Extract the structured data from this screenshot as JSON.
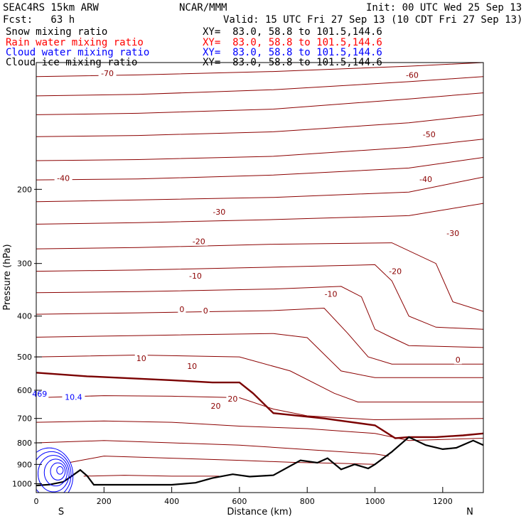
{
  "header": {
    "model": "SEAC4RS 15km ARW",
    "center": "NCAR/MMM",
    "init": "Init: 00 UTC Wed 25 Sep 13",
    "fcst": "Fcst:   63 h",
    "valid": "Valid: 15 UTC Fri 27 Sep 13 (10 CDT Fri 27 Sep 13)"
  },
  "legend": [
    {
      "label": "Snow mixing ratio",
      "xy": "XY=  83.0, 58.8 to 101.5,144.6",
      "color": "#000000"
    },
    {
      "label": "Rain water mixing ratio",
      "xy": "XY=  83.0, 58.8 to 101.5,144.6",
      "color": "#ff0000"
    },
    {
      "label": "Cloud water mixing ratio",
      "xy": "XY=  83.0, 58.8 to 101.5,144.6",
      "color": "#0000ff"
    },
    {
      "label": "Cloud ice mixing ratio",
      "xy": "XY=  83.0, 58.8 to 101.5,144.6",
      "color": "#000000"
    }
  ],
  "colors": {
    "temperature_contour": "#8b0000",
    "zero_isotherm": "#7a0000",
    "terrain": "#000000",
    "cloud_water": "#0000ff"
  },
  "chart_data": {
    "type": "line",
    "xlabel": "Distance (km)",
    "ylabel": "Pressure (hPa)",
    "xlim": [
      0,
      1320
    ],
    "ylim": [
      1050,
      100
    ],
    "y_scale": "log",
    "x_ticks": [
      0,
      200,
      400,
      600,
      800,
      1000,
      1200
    ],
    "y_ticks": [
      200,
      300,
      400,
      500,
      600,
      700,
      800,
      900,
      1000
    ],
    "end_labels": {
      "left": "S",
      "right": "N"
    },
    "grid": false,
    "contour_labels": [
      {
        "text": "-70",
        "x": 210,
        "y": 106
      },
      {
        "text": "-60",
        "x": 1110,
        "y": 107
      },
      {
        "text": "-50",
        "x": 1160,
        "y": 148
      },
      {
        "text": "-40",
        "x": 80,
        "y": 188
      },
      {
        "text": "-40",
        "x": 1150,
        "y": 189
      },
      {
        "text": "-30",
        "x": 540,
        "y": 226
      },
      {
        "text": "-30",
        "x": 1230,
        "y": 254
      },
      {
        "text": "-20",
        "x": 480,
        "y": 266
      },
      {
        "text": "-20",
        "x": 1060,
        "y": 313
      },
      {
        "text": "-10",
        "x": 470,
        "y": 321
      },
      {
        "text": "-10",
        "x": 870,
        "y": 354
      },
      {
        "text": "0",
        "x": 430,
        "y": 385
      },
      {
        "text": "0",
        "x": 500,
        "y": 388
      },
      {
        "text": "0",
        "x": 1245,
        "y": 508
      },
      {
        "text": "10",
        "x": 310,
        "y": 504
      },
      {
        "text": "10",
        "x": 460,
        "y": 526
      },
      {
        "text": "20",
        "x": 580,
        "y": 629
      },
      {
        "text": "20",
        "x": 530,
        "y": 654
      },
      {
        "text": "469",
        "x": 10,
        "y": 612
      },
      {
        "text": "10.4",
        "x": 110,
        "y": 623
      }
    ],
    "series": [
      {
        "name": "Temperature contours (C)",
        "isotherms": [
          {
            "t": -70,
            "points": [
              [
                0,
                108
              ],
              [
                300,
                107
              ],
              [
                700,
                105
              ],
              [
                1100,
                102
              ],
              [
                1320,
                100
              ]
            ]
          },
          {
            "t": -65,
            "points": [
              [
                0,
                120
              ],
              [
                300,
                119
              ],
              [
                700,
                116
              ],
              [
                1100,
                111
              ],
              [
                1320,
                108
              ]
            ]
          },
          {
            "t": -60,
            "points": [
              [
                0,
                133
              ],
              [
                300,
                132
              ],
              [
                700,
                129
              ],
              [
                1100,
                122
              ],
              [
                1320,
                118
              ]
            ]
          },
          {
            "t": -55,
            "points": [
              [
                0,
                150
              ],
              [
                300,
                149
              ],
              [
                700,
                146
              ],
              [
                1100,
                139
              ],
              [
                1320,
                133
              ]
            ]
          },
          {
            "t": -50,
            "points": [
              [
                0,
                171
              ],
              [
                300,
                170
              ],
              [
                700,
                167
              ],
              [
                1100,
                159
              ],
              [
                1320,
                152
              ]
            ]
          },
          {
            "t": -45,
            "points": [
              [
                0,
                190
              ],
              [
                300,
                189
              ],
              [
                700,
                185
              ],
              [
                1100,
                178
              ],
              [
                1320,
                168
              ]
            ]
          },
          {
            "t": -40,
            "points": [
              [
                0,
                214
              ],
              [
                300,
                212
              ],
              [
                700,
                209
              ],
              [
                1100,
                203
              ],
              [
                1320,
                187
              ]
            ]
          },
          {
            "t": -35,
            "points": [
              [
                0,
                242
              ],
              [
                300,
                240
              ],
              [
                700,
                236
              ],
              [
                1100,
                231
              ],
              [
                1320,
                216
              ]
            ]
          },
          {
            "t": -30,
            "points": [
              [
                0,
                277
              ],
              [
                300,
                275
              ],
              [
                700,
                270
              ],
              [
                1050,
                268
              ],
              [
                1180,
                300
              ],
              [
                1230,
                370
              ],
              [
                1320,
                390
              ]
            ]
          },
          {
            "t": -25,
            "points": [
              [
                0,
                313
              ],
              [
                300,
                311
              ],
              [
                700,
                306
              ],
              [
                1000,
                302
              ],
              [
                1050,
                330
              ],
              [
                1100,
                400
              ],
              [
                1180,
                425
              ],
              [
                1320,
                430
              ]
            ]
          },
          {
            "t": -20,
            "points": [
              [
                0,
                352
              ],
              [
                300,
                350
              ],
              [
                700,
                345
              ],
              [
                900,
                340
              ],
              [
                960,
                360
              ],
              [
                1000,
                430
              ],
              [
                1050,
                450
              ],
              [
                1100,
                470
              ],
              [
                1320,
                475
              ]
            ]
          },
          {
            "t": -15,
            "points": [
              [
                0,
                396
              ],
              [
                300,
                393
              ],
              [
                700,
                388
              ],
              [
                850,
                383
              ],
              [
                920,
                440
              ],
              [
                980,
                500
              ],
              [
                1050,
                520
              ],
              [
                1320,
                520
              ]
            ]
          },
          {
            "t": -10,
            "points": [
              [
                0,
                449
              ],
              [
                300,
                445
              ],
              [
                700,
                440
              ],
              [
                800,
                450
              ],
              [
                900,
                540
              ],
              [
                1000,
                560
              ],
              [
                1320,
                560
              ]
            ]
          },
          {
            "t": -5,
            "points": [
              [
                0,
                500
              ],
              [
                300,
                495
              ],
              [
                600,
                500
              ],
              [
                750,
                540
              ],
              [
                880,
                610
              ],
              [
                950,
                640
              ],
              [
                1320,
                640
              ]
            ]
          },
          {
            "t": 5,
            "points": [
              [
                0,
                625
              ],
              [
                200,
                618
              ],
              [
                400,
                620
              ],
              [
                600,
                625
              ],
              [
                700,
                665
              ],
              [
                800,
                690
              ],
              [
                1000,
                705
              ],
              [
                1320,
                700
              ]
            ]
          },
          {
            "t": 10,
            "points": [
              [
                0,
                715
              ],
              [
                200,
                710
              ],
              [
                400,
                715
              ],
              [
                600,
                730
              ],
              [
                800,
                740
              ],
              [
                1000,
                760
              ],
              [
                1100,
                790
              ],
              [
                1320,
                780
              ]
            ]
          },
          {
            "t": 15,
            "points": [
              [
                0,
                800
              ],
              [
                200,
                790
              ],
              [
                400,
                800
              ],
              [
                600,
                810
              ],
              [
                800,
                830
              ],
              [
                1000,
                850
              ],
              [
                1040,
                860
              ]
            ]
          },
          {
            "t": 20,
            "points": [
              [
                100,
                890
              ],
              [
                200,
                860
              ],
              [
                400,
                870
              ],
              [
                600,
                880
              ],
              [
                760,
                890
              ],
              [
                900,
                895
              ],
              [
                1000,
                900
              ]
            ]
          },
          {
            "t": 25,
            "points": [
              [
                140,
                960
              ],
              [
                260,
                955
              ],
              [
                400,
                960
              ],
              [
                540,
                960
              ]
            ]
          }
        ]
      },
      {
        "name": "0 C isotherm",
        "points": [
          [
            0,
            545
          ],
          [
            150,
            556
          ],
          [
            400,
            568
          ],
          [
            520,
            575
          ],
          [
            600,
            575
          ],
          [
            640,
            610
          ],
          [
            700,
            680
          ],
          [
            850,
            700
          ],
          [
            1000,
            727
          ],
          [
            1060,
            780
          ],
          [
            1100,
            775
          ],
          [
            1180,
            775
          ],
          [
            1260,
            768
          ],
          [
            1320,
            760
          ]
        ]
      },
      {
        "name": "Terrain",
        "points": [
          [
            0,
            1010
          ],
          [
            40,
            1005
          ],
          [
            80,
            990
          ],
          [
            100,
            965
          ],
          [
            130,
            928
          ],
          [
            150,
            958
          ],
          [
            170,
            1006
          ],
          [
            400,
            1006
          ],
          [
            470,
            995
          ],
          [
            520,
            970
          ],
          [
            580,
            950
          ],
          [
            630,
            962
          ],
          [
            700,
            955
          ],
          [
            780,
            880
          ],
          [
            830,
            892
          ],
          [
            860,
            870
          ],
          [
            900,
            925
          ],
          [
            940,
            900
          ],
          [
            980,
            920
          ],
          [
            1000,
            900
          ],
          [
            1050,
            840
          ],
          [
            1100,
            775
          ],
          [
            1150,
            810
          ],
          [
            1200,
            828
          ],
          [
            1240,
            822
          ],
          [
            1290,
            790
          ],
          [
            1320,
            810
          ]
        ]
      },
      {
        "name": "Cloud water mixing ratio",
        "contour_count": 6
      }
    ]
  }
}
